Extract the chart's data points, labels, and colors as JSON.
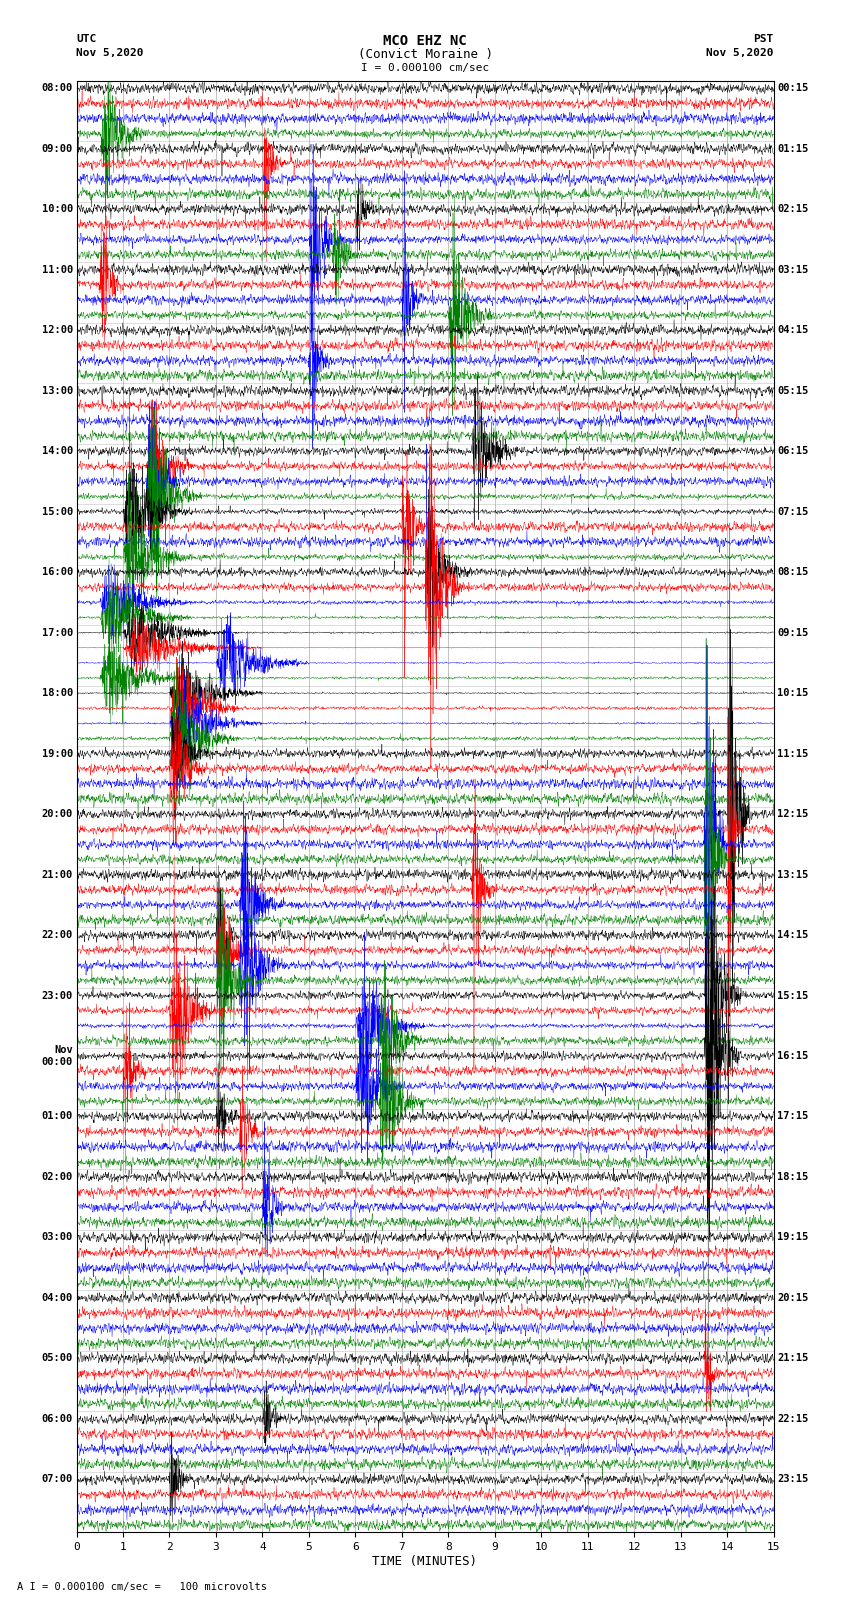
{
  "title_line1": "MCO EHZ NC",
  "title_line2": "(Convict Moraine )",
  "scale_text": "I = 0.000100 cm/sec",
  "footer_text": "A I = 0.000100 cm/sec =   100 microvolts",
  "left_label_line1": "UTC",
  "left_label_line2": "Nov 5,2020",
  "right_label_line1": "PST",
  "right_label_line2": "Nov 5,2020",
  "xlabel": "TIME (MINUTES)",
  "utc_hour_labels": [
    "08:00",
    "09:00",
    "10:00",
    "11:00",
    "12:00",
    "13:00",
    "14:00",
    "15:00",
    "16:00",
    "17:00",
    "18:00",
    "19:00",
    "20:00",
    "21:00",
    "22:00",
    "23:00",
    "Nov\n00:00",
    "01:00",
    "02:00",
    "03:00",
    "04:00",
    "05:00",
    "06:00",
    "07:00"
  ],
  "pst_hour_labels": [
    "00:15",
    "01:15",
    "02:15",
    "03:15",
    "04:15",
    "05:15",
    "06:15",
    "07:15",
    "08:15",
    "09:15",
    "10:15",
    "11:15",
    "12:15",
    "13:15",
    "14:15",
    "15:15",
    "16:15",
    "17:15",
    "18:15",
    "19:15",
    "20:15",
    "21:15",
    "22:15",
    "23:15"
  ],
  "n_hour_groups": 24,
  "traces_per_group": 4,
  "colors": [
    "black",
    "red",
    "blue",
    "green"
  ],
  "fig_width": 8.5,
  "fig_height": 16.13,
  "background_color": "white",
  "grid_color": "#aaaaaa",
  "xmin": 0,
  "xmax": 15,
  "xticks": [
    0,
    1,
    2,
    3,
    4,
    5,
    6,
    7,
    8,
    9,
    10,
    11,
    12,
    13,
    14,
    15
  ]
}
